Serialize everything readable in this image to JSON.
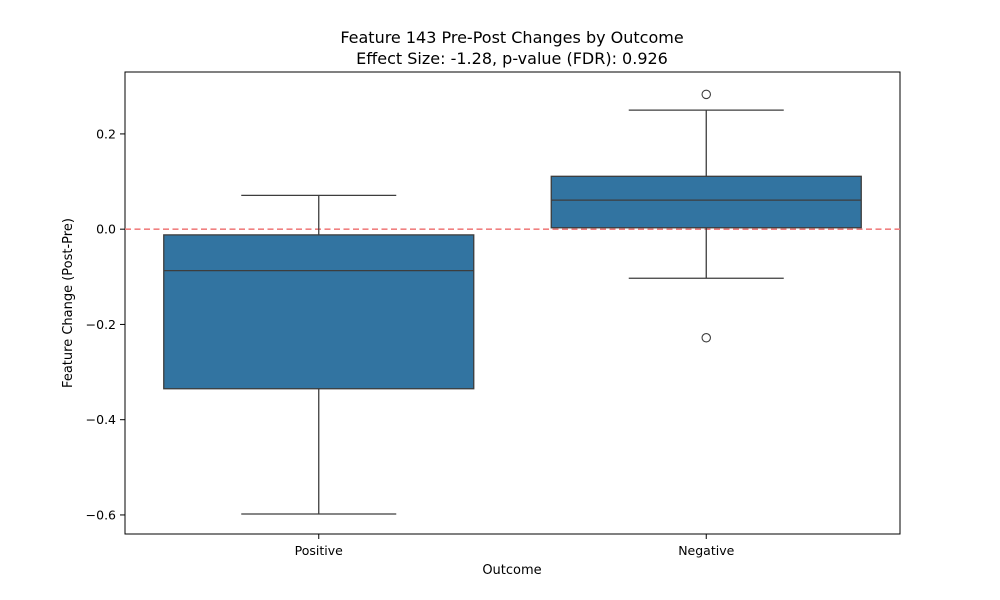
{
  "chart_data": {
    "type": "box",
    "title": "Feature 143 Pre-Post Changes by Outcome",
    "subtitle": "Effect Size: -1.28, p-value (FDR): 0.926",
    "xlabel": "Outcome",
    "ylabel": "Feature Change (Post-Pre)",
    "categories": [
      "Positive",
      "Negative"
    ],
    "ylim": [
      -0.64,
      0.33
    ],
    "yticks": [
      0.2,
      0.0,
      -0.2,
      -0.4,
      -0.6
    ],
    "ytick_labels": [
      "0.2",
      "0.0",
      "−0.2",
      "−0.4",
      "−0.6"
    ],
    "grid": false,
    "box_color": "#3274a1",
    "reference_line": {
      "y": 0.0,
      "color": "#f08080",
      "style": "dashed"
    },
    "boxes": [
      {
        "category": "Positive",
        "whisker_low": -0.598,
        "q1": -0.335,
        "median": -0.087,
        "q3": -0.012,
        "whisker_high": 0.071,
        "outliers": []
      },
      {
        "category": "Negative",
        "whisker_low": -0.103,
        "q1": 0.003,
        "median": 0.061,
        "q3": 0.111,
        "whisker_high": 0.25,
        "outliers": [
          0.283,
          -0.228
        ]
      }
    ]
  }
}
